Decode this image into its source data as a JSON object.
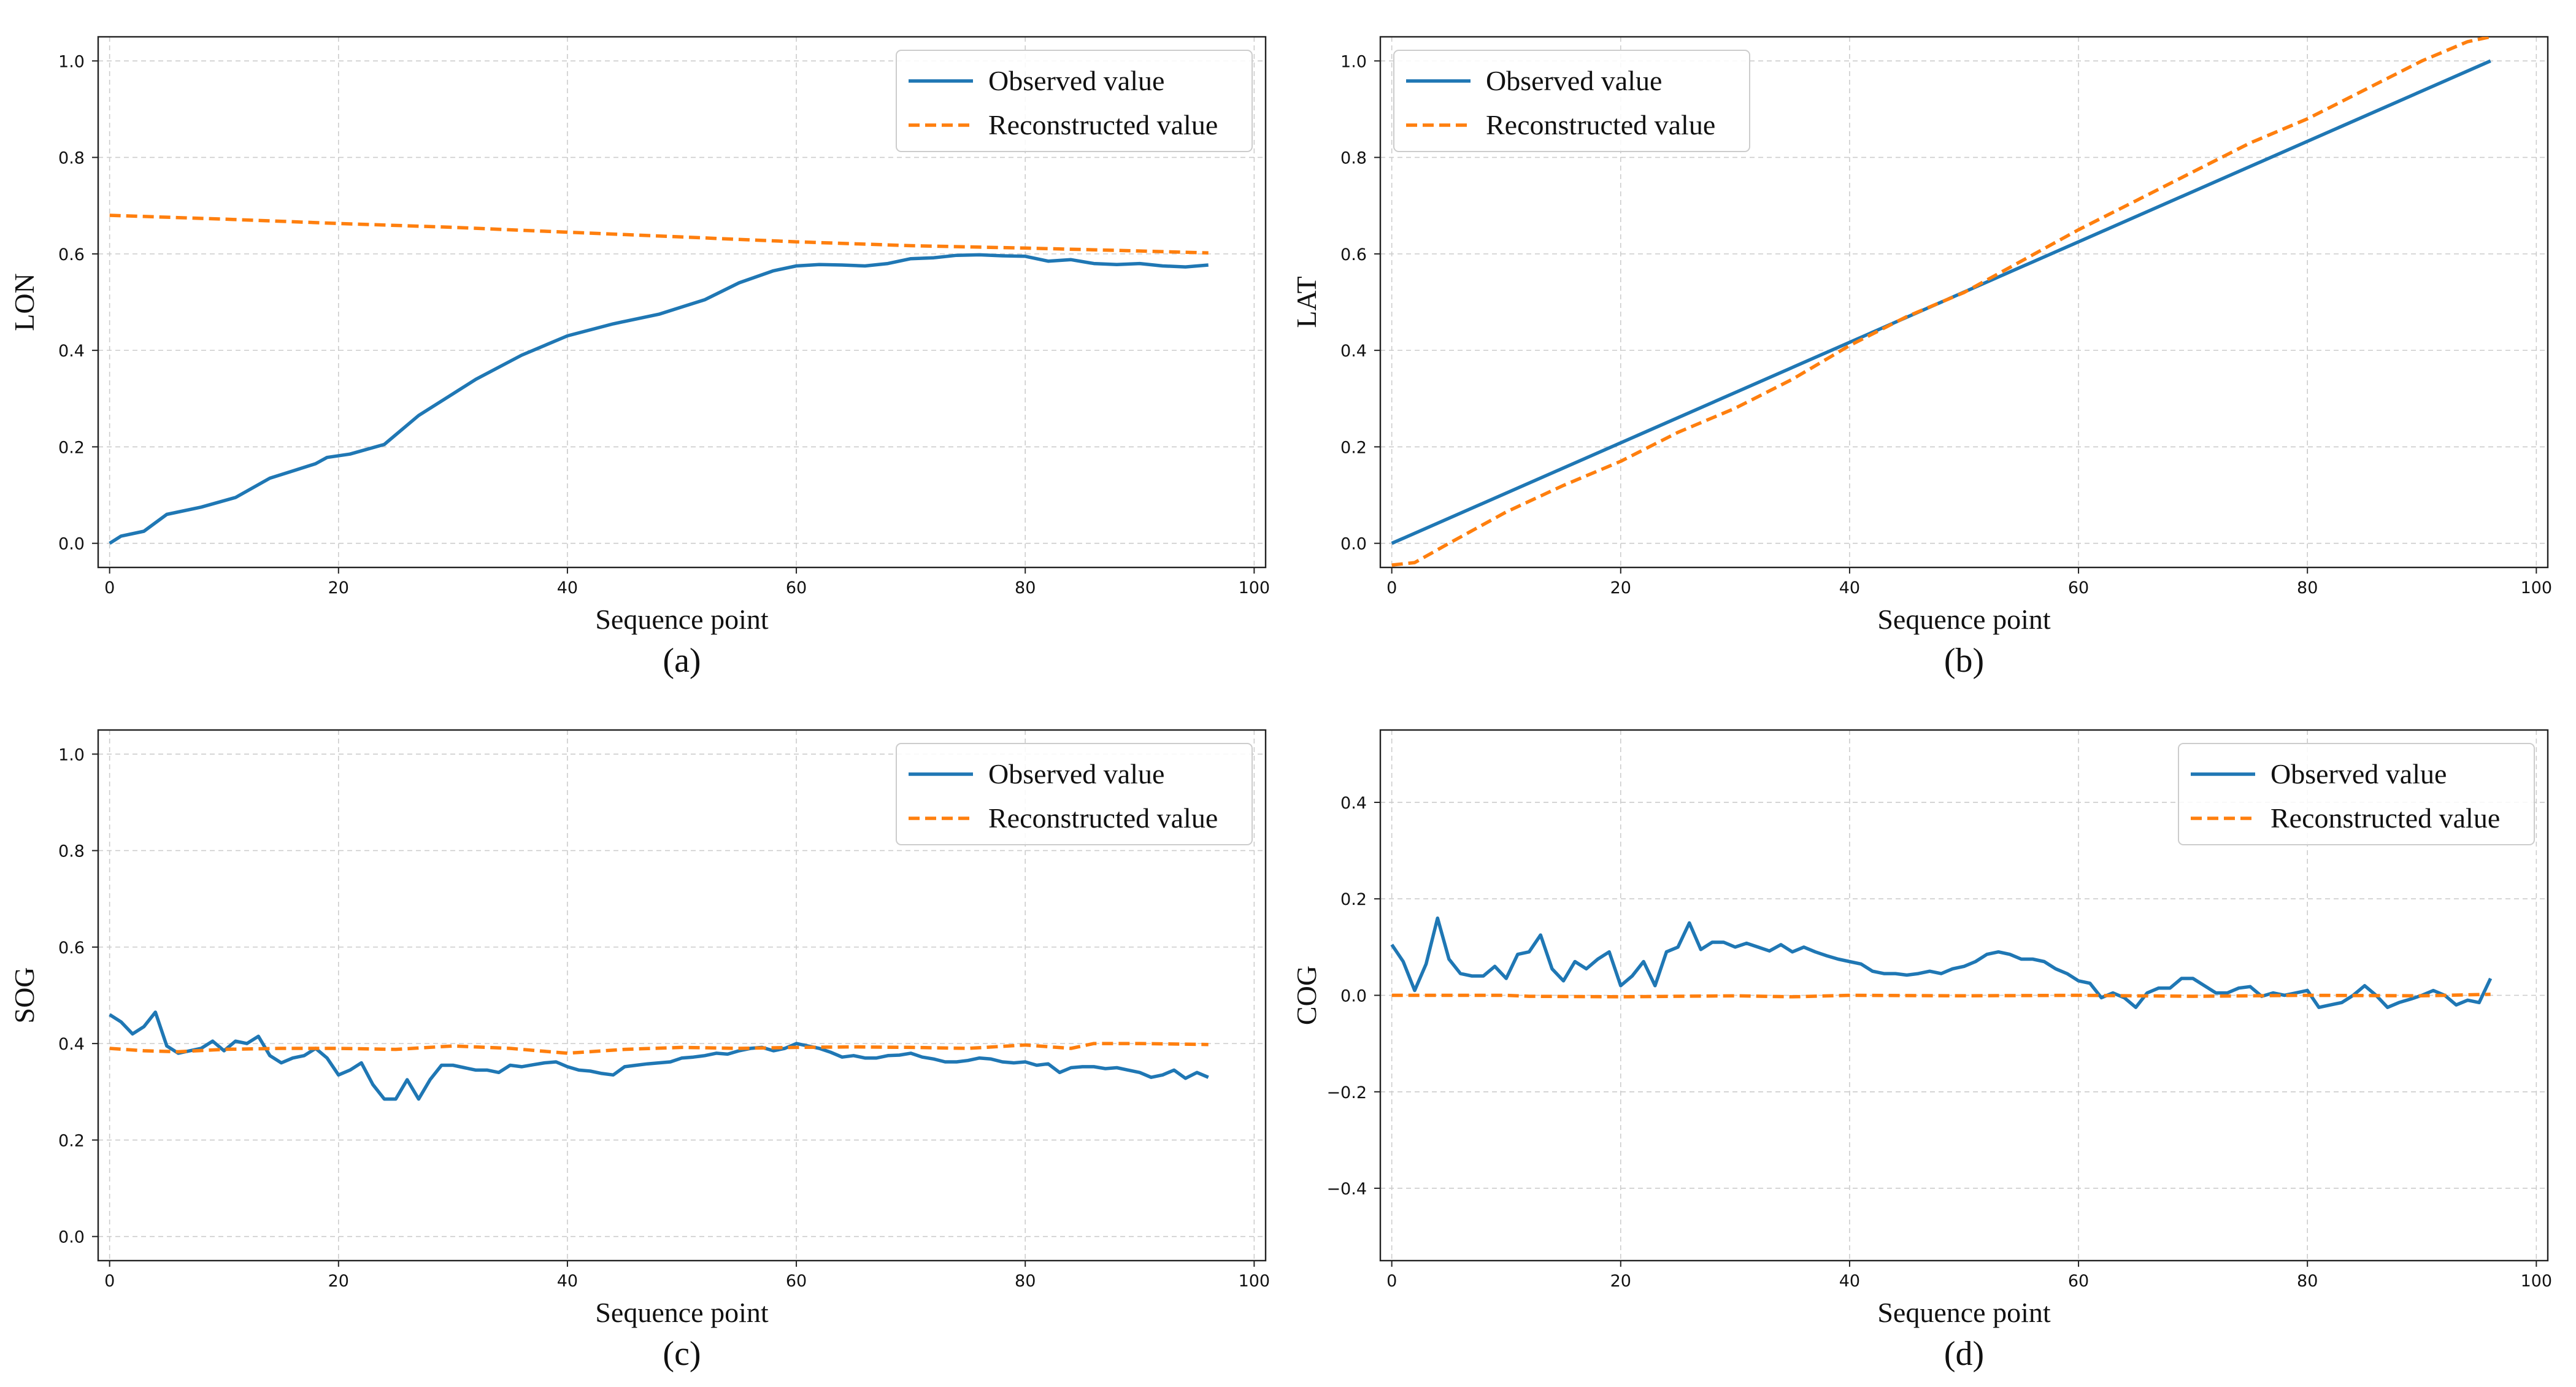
{
  "colors": {
    "observed": "#1f77b4",
    "reconstructed": "#ff7f0e",
    "grid": "#cccccc",
    "axis": "#222222"
  },
  "chart_data": [
    {
      "type": "line",
      "caption": "(a)",
      "xlabel": "Sequence point",
      "ylabel": "LON",
      "xlim": [
        -1,
        101
      ],
      "ylim": [
        -0.05,
        1.05
      ],
      "xticks": [
        0,
        20,
        40,
        60,
        80,
        100
      ],
      "xtick_labels": [
        "0",
        "20",
        "40",
        "60",
        "80",
        "100"
      ],
      "yticks": [
        0.0,
        0.2,
        0.4,
        0.6,
        0.8,
        1.0
      ],
      "ytick_labels": [
        "0.0",
        "0.2",
        "0.4",
        "0.6",
        "0.8",
        "1.0"
      ],
      "grid": true,
      "legend": "top-right",
      "series": [
        {
          "name": "Observed value",
          "style": "solid",
          "x": [
            0,
            1,
            3,
            5,
            8,
            11,
            14,
            16,
            18,
            19,
            21,
            24,
            27,
            30,
            32,
            36,
            40,
            44,
            48,
            50,
            52,
            55,
            58,
            60,
            62,
            64,
            66,
            68,
            70,
            72,
            74,
            76,
            78,
            80,
            82,
            84,
            86,
            88,
            90,
            92,
            94,
            96
          ],
          "y": [
            0.0,
            0.015,
            0.025,
            0.06,
            0.075,
            0.095,
            0.135,
            0.15,
            0.165,
            0.178,
            0.185,
            0.205,
            0.265,
            0.31,
            0.34,
            0.39,
            0.43,
            0.455,
            0.475,
            0.49,
            0.505,
            0.54,
            0.565,
            0.575,
            0.578,
            0.577,
            0.575,
            0.58,
            0.59,
            0.592,
            0.597,
            0.598,
            0.596,
            0.595,
            0.585,
            0.588,
            0.58,
            0.578,
            0.58,
            0.575,
            0.573,
            0.577
          ]
        },
        {
          "name": "Reconstructed value",
          "style": "dashed",
          "x": [
            0,
            10,
            20,
            30,
            40,
            50,
            60,
            70,
            80,
            90,
            96
          ],
          "y": [
            0.68,
            0.672,
            0.663,
            0.655,
            0.645,
            0.635,
            0.625,
            0.617,
            0.612,
            0.606,
            0.602
          ]
        }
      ]
    },
    {
      "type": "line",
      "caption": "(b)",
      "xlabel": "Sequence point",
      "ylabel": "LAT",
      "xlim": [
        -1,
        101
      ],
      "ylim": [
        -0.05,
        1.05
      ],
      "xticks": [
        0,
        20,
        40,
        60,
        80,
        100
      ],
      "xtick_labels": [
        "0",
        "20",
        "40",
        "60",
        "80",
        "100"
      ],
      "yticks": [
        0.0,
        0.2,
        0.4,
        0.6,
        0.8,
        1.0
      ],
      "ytick_labels": [
        "0.0",
        "0.2",
        "0.4",
        "0.6",
        "0.8",
        "1.0"
      ],
      "grid": true,
      "legend": "top-left",
      "series": [
        {
          "name": "Observed value",
          "style": "solid",
          "x": [
            0,
            96
          ],
          "y": [
            0.0,
            1.0
          ]
        },
        {
          "name": "Reconstructed value",
          "style": "dashed",
          "x": [
            0,
            2,
            5,
            10,
            15,
            20,
            25,
            30,
            35,
            40,
            45,
            50,
            55,
            60,
            65,
            70,
            75,
            80,
            85,
            90,
            94,
            96
          ],
          "y": [
            -0.045,
            -0.04,
            0.0,
            0.065,
            0.12,
            0.17,
            0.23,
            0.28,
            0.34,
            0.41,
            0.47,
            0.52,
            0.585,
            0.65,
            0.71,
            0.77,
            0.83,
            0.88,
            0.94,
            1.0,
            1.04,
            1.05
          ]
        }
      ]
    },
    {
      "type": "line",
      "caption": "(c)",
      "xlabel": "Sequence point",
      "ylabel": "SOG",
      "xlim": [
        -1,
        101
      ],
      "ylim": [
        -0.05,
        1.05
      ],
      "xticks": [
        0,
        20,
        40,
        60,
        80,
        100
      ],
      "xtick_labels": [
        "0",
        "20",
        "40",
        "60",
        "80",
        "100"
      ],
      "yticks": [
        0.0,
        0.2,
        0.4,
        0.6,
        0.8,
        1.0
      ],
      "ytick_labels": [
        "0.0",
        "0.2",
        "0.4",
        "0.6",
        "0.8",
        "1.0"
      ],
      "grid": true,
      "legend": "top-right",
      "series": [
        {
          "name": "Observed value",
          "style": "solid",
          "x": [
            0,
            1,
            2,
            3,
            4,
            5,
            6,
            7,
            8,
            9,
            10,
            11,
            12,
            13,
            14,
            15,
            16,
            17,
            18,
            19,
            20,
            21,
            22,
            23,
            24,
            25,
            26,
            27,
            28,
            29,
            30,
            31,
            32,
            33,
            34,
            35,
            36,
            37,
            38,
            39,
            40,
            41,
            42,
            43,
            44,
            45,
            46,
            47,
            48,
            49,
            50,
            51,
            52,
            53,
            54,
            55,
            56,
            57,
            58,
            59,
            60,
            61,
            62,
            63,
            64,
            65,
            66,
            67,
            68,
            69,
            70,
            71,
            72,
            73,
            74,
            75,
            76,
            77,
            78,
            79,
            80,
            81,
            82,
            83,
            84,
            85,
            86,
            87,
            88,
            89,
            90,
            91,
            92,
            93,
            94,
            95,
            96
          ],
          "y": [
            0.46,
            0.445,
            0.42,
            0.435,
            0.465,
            0.395,
            0.38,
            0.385,
            0.39,
            0.405,
            0.385,
            0.405,
            0.4,
            0.415,
            0.375,
            0.36,
            0.37,
            0.375,
            0.39,
            0.37,
            0.335,
            0.345,
            0.36,
            0.315,
            0.285,
            0.285,
            0.325,
            0.285,
            0.325,
            0.355,
            0.355,
            0.35,
            0.345,
            0.345,
            0.34,
            0.355,
            0.352,
            0.356,
            0.36,
            0.362,
            0.352,
            0.345,
            0.343,
            0.338,
            0.335,
            0.352,
            0.355,
            0.358,
            0.36,
            0.362,
            0.37,
            0.372,
            0.375,
            0.38,
            0.378,
            0.385,
            0.39,
            0.392,
            0.385,
            0.39,
            0.4,
            0.395,
            0.39,
            0.382,
            0.372,
            0.375,
            0.37,
            0.37,
            0.375,
            0.376,
            0.38,
            0.372,
            0.368,
            0.362,
            0.362,
            0.365,
            0.37,
            0.368,
            0.362,
            0.36,
            0.362,
            0.355,
            0.358,
            0.34,
            0.35,
            0.352,
            0.352,
            0.348,
            0.35,
            0.345,
            0.34,
            0.33,
            0.335,
            0.345,
            0.328,
            0.34,
            0.33
          ]
        },
        {
          "name": "Reconstructed value",
          "style": "dashed",
          "x": [
            0,
            3,
            6,
            10,
            15,
            20,
            25,
            30,
            35,
            40,
            45,
            50,
            55,
            60,
            65,
            70,
            75,
            80,
            84,
            86,
            90,
            96
          ],
          "y": [
            0.39,
            0.385,
            0.383,
            0.388,
            0.39,
            0.39,
            0.388,
            0.395,
            0.39,
            0.38,
            0.388,
            0.392,
            0.39,
            0.392,
            0.393,
            0.392,
            0.39,
            0.397,
            0.39,
            0.4,
            0.4,
            0.398
          ]
        }
      ]
    },
    {
      "type": "line",
      "caption": "(d)",
      "xlabel": "Sequence point",
      "ylabel": "COG",
      "xlim": [
        -1,
        101
      ],
      "ylim": [
        -0.55,
        0.55
      ],
      "xticks": [
        0,
        20,
        40,
        60,
        80,
        100
      ],
      "xtick_labels": [
        "0",
        "20",
        "40",
        "60",
        "80",
        "100"
      ],
      "yticks": [
        -0.4,
        -0.2,
        0.0,
        0.2,
        0.4
      ],
      "ytick_labels": [
        "−0.4",
        "−0.2",
        "0.0",
        "0.2",
        "0.4"
      ],
      "grid": true,
      "legend": "top-right",
      "series": [
        {
          "name": "Observed value",
          "style": "solid",
          "x": [
            0,
            1,
            2,
            3,
            4,
            5,
            6,
            7,
            8,
            9,
            10,
            11,
            12,
            13,
            14,
            15,
            16,
            17,
            18,
            19,
            20,
            21,
            22,
            23,
            24,
            25,
            26,
            27,
            28,
            29,
            30,
            31,
            32,
            33,
            34,
            35,
            36,
            37,
            38,
            39,
            40,
            41,
            42,
            43,
            44,
            45,
            46,
            47,
            48,
            49,
            50,
            51,
            52,
            53,
            54,
            55,
            56,
            57,
            58,
            59,
            60,
            61,
            62,
            63,
            64,
            65,
            66,
            67,
            68,
            69,
            70,
            71,
            72,
            73,
            74,
            75,
            76,
            77,
            78,
            79,
            80,
            81,
            82,
            83,
            84,
            85,
            86,
            87,
            88,
            89,
            90,
            91,
            92,
            93,
            94,
            95,
            96
          ],
          "y": [
            0.105,
            0.07,
            0.01,
            0.065,
            0.16,
            0.075,
            0.045,
            0.04,
            0.04,
            0.06,
            0.035,
            0.085,
            0.09,
            0.125,
            0.055,
            0.03,
            0.07,
            0.055,
            0.075,
            0.09,
            0.02,
            0.04,
            0.07,
            0.02,
            0.09,
            0.1,
            0.15,
            0.095,
            0.11,
            0.11,
            0.1,
            0.108,
            0.1,
            0.092,
            0.105,
            0.09,
            0.1,
            0.09,
            0.082,
            0.075,
            0.07,
            0.065,
            0.05,
            0.045,
            0.045,
            0.042,
            0.045,
            0.05,
            0.045,
            0.055,
            0.06,
            0.07,
            0.085,
            0.09,
            0.085,
            0.075,
            0.075,
            0.07,
            0.055,
            0.045,
            0.03,
            0.025,
            -0.005,
            0.005,
            -0.005,
            -0.025,
            0.005,
            0.015,
            0.015,
            0.035,
            0.035,
            0.02,
            0.005,
            0.005,
            0.015,
            0.018,
            -0.002,
            0.005,
            0.0,
            0.005,
            0.01,
            -0.025,
            -0.02,
            -0.015,
            0.0,
            0.02,
            0.0,
            -0.025,
            -0.015,
            -0.008,
            0.0,
            0.01,
            0.0,
            -0.02,
            -0.01,
            -0.015,
            0.035
          ]
        },
        {
          "name": "Reconstructed value",
          "style": "dashed",
          "x": [
            0,
            10,
            12,
            20,
            30,
            35,
            40,
            50,
            60,
            70,
            80,
            90,
            96
          ],
          "y": [
            0.0,
            0.0,
            -0.002,
            -0.003,
            -0.001,
            -0.003,
            0.0,
            -0.001,
            0.0,
            -0.002,
            0.0,
            -0.001,
            0.002
          ]
        }
      ]
    }
  ]
}
